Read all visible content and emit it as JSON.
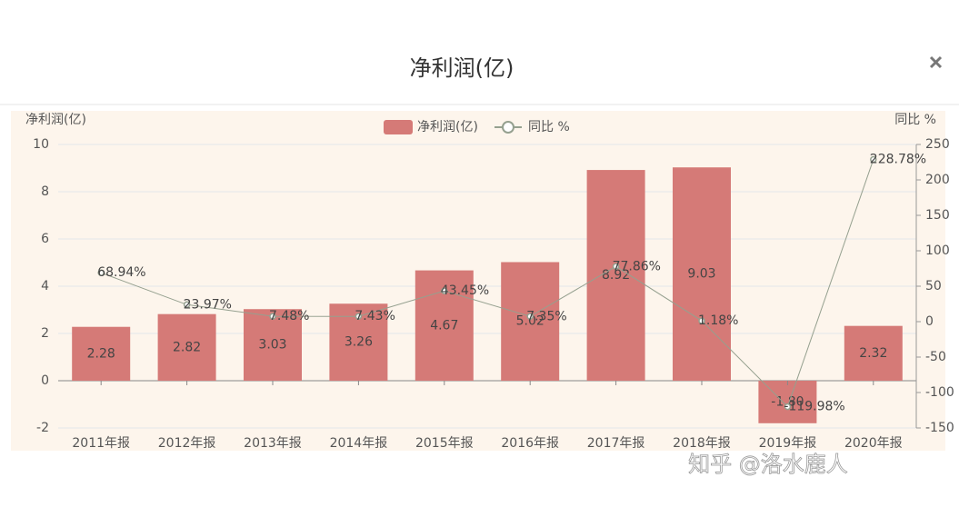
{
  "modal": {
    "title": "净利润(亿)",
    "watermark": "知乎 @洛水鹿人"
  },
  "chart_data": {
    "type": "bar-line",
    "y_label": "净利润(亿)",
    "y2_label": "同比 %",
    "categories": [
      "2011年报",
      "2012年报",
      "2013年报",
      "2014年报",
      "2015年报",
      "2016年报",
      "2017年报",
      "2018年报",
      "2019年报",
      "2020年报"
    ],
    "series": [
      {
        "name": "净利润(亿)",
        "color": "#d57a77",
        "type": "bar",
        "values": [
          2.28,
          2.82,
          3.03,
          3.26,
          4.67,
          5.02,
          8.92,
          9.03,
          -1.8,
          2.32
        ],
        "value_labels": [
          "2.28",
          "2.82",
          "3.03",
          "3.26",
          "4.67",
          "5.02",
          "8.92",
          "9.03",
          "-1.80",
          "2.32"
        ]
      },
      {
        "name": "同比 %",
        "color": "#95a08f",
        "type": "line",
        "axis": "y2",
        "values": [
          68.94,
          23.97,
          7.48,
          7.43,
          43.45,
          7.35,
          77.86,
          1.18,
          -119.98,
          228.78
        ],
        "value_labels": [
          "68.94%",
          "23.97%",
          "7.48%",
          "7.43%",
          "43.45%",
          "7.35%",
          "77.86%",
          "1.18%",
          "-119.98%",
          "228.78%"
        ]
      }
    ],
    "ylim": [
      -2,
      10
    ],
    "yticks": [
      -2,
      0,
      2,
      4,
      6,
      8,
      10
    ],
    "y2lim": [
      -150,
      250
    ],
    "y2ticks": [
      -150,
      -100,
      -50,
      0,
      50,
      100,
      150,
      200,
      250
    ],
    "grid": true
  }
}
